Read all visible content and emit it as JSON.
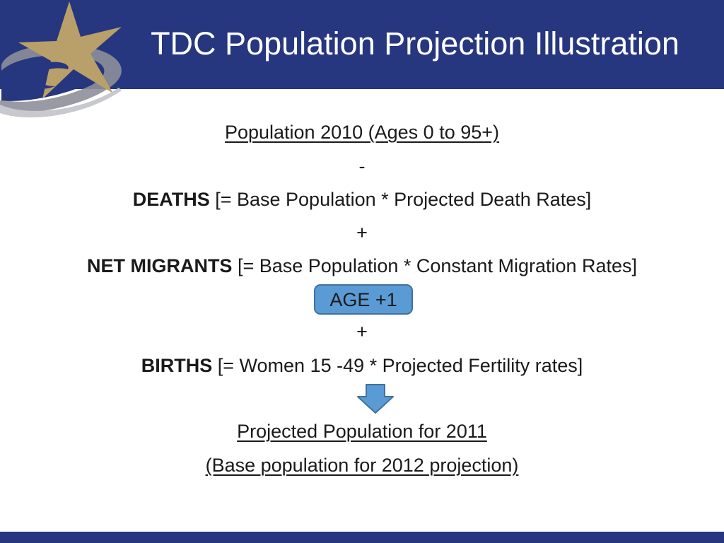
{
  "slide": {
    "title": "TDC Population Projection Illustration"
  },
  "flow": {
    "population_2010": "Population 2010 (Ages 0 to 95+)",
    "minus": "-",
    "deaths_label": "DEATHS",
    "deaths_formula": " [= Base Population * Projected Death Rates]",
    "plus_1": "+",
    "migrants_label": "NET MIGRANTS",
    "migrants_formula": " [= Base Population * Constant Migration Rates]",
    "age_box": "AGE +1",
    "plus_2": "+",
    "births_label": "BIRTHS",
    "births_formula": " [= Women 15 -49 * Projected Fertility rates]",
    "projected_2011": "Projected Population for 2011",
    "base_2012": "(Base population for 2012 projection)"
  },
  "colors": {
    "header": "#26367f",
    "star": "#b9a06a",
    "age_box_fill": "#5b9bd5",
    "arrow_fill": "#5b9bd5"
  }
}
